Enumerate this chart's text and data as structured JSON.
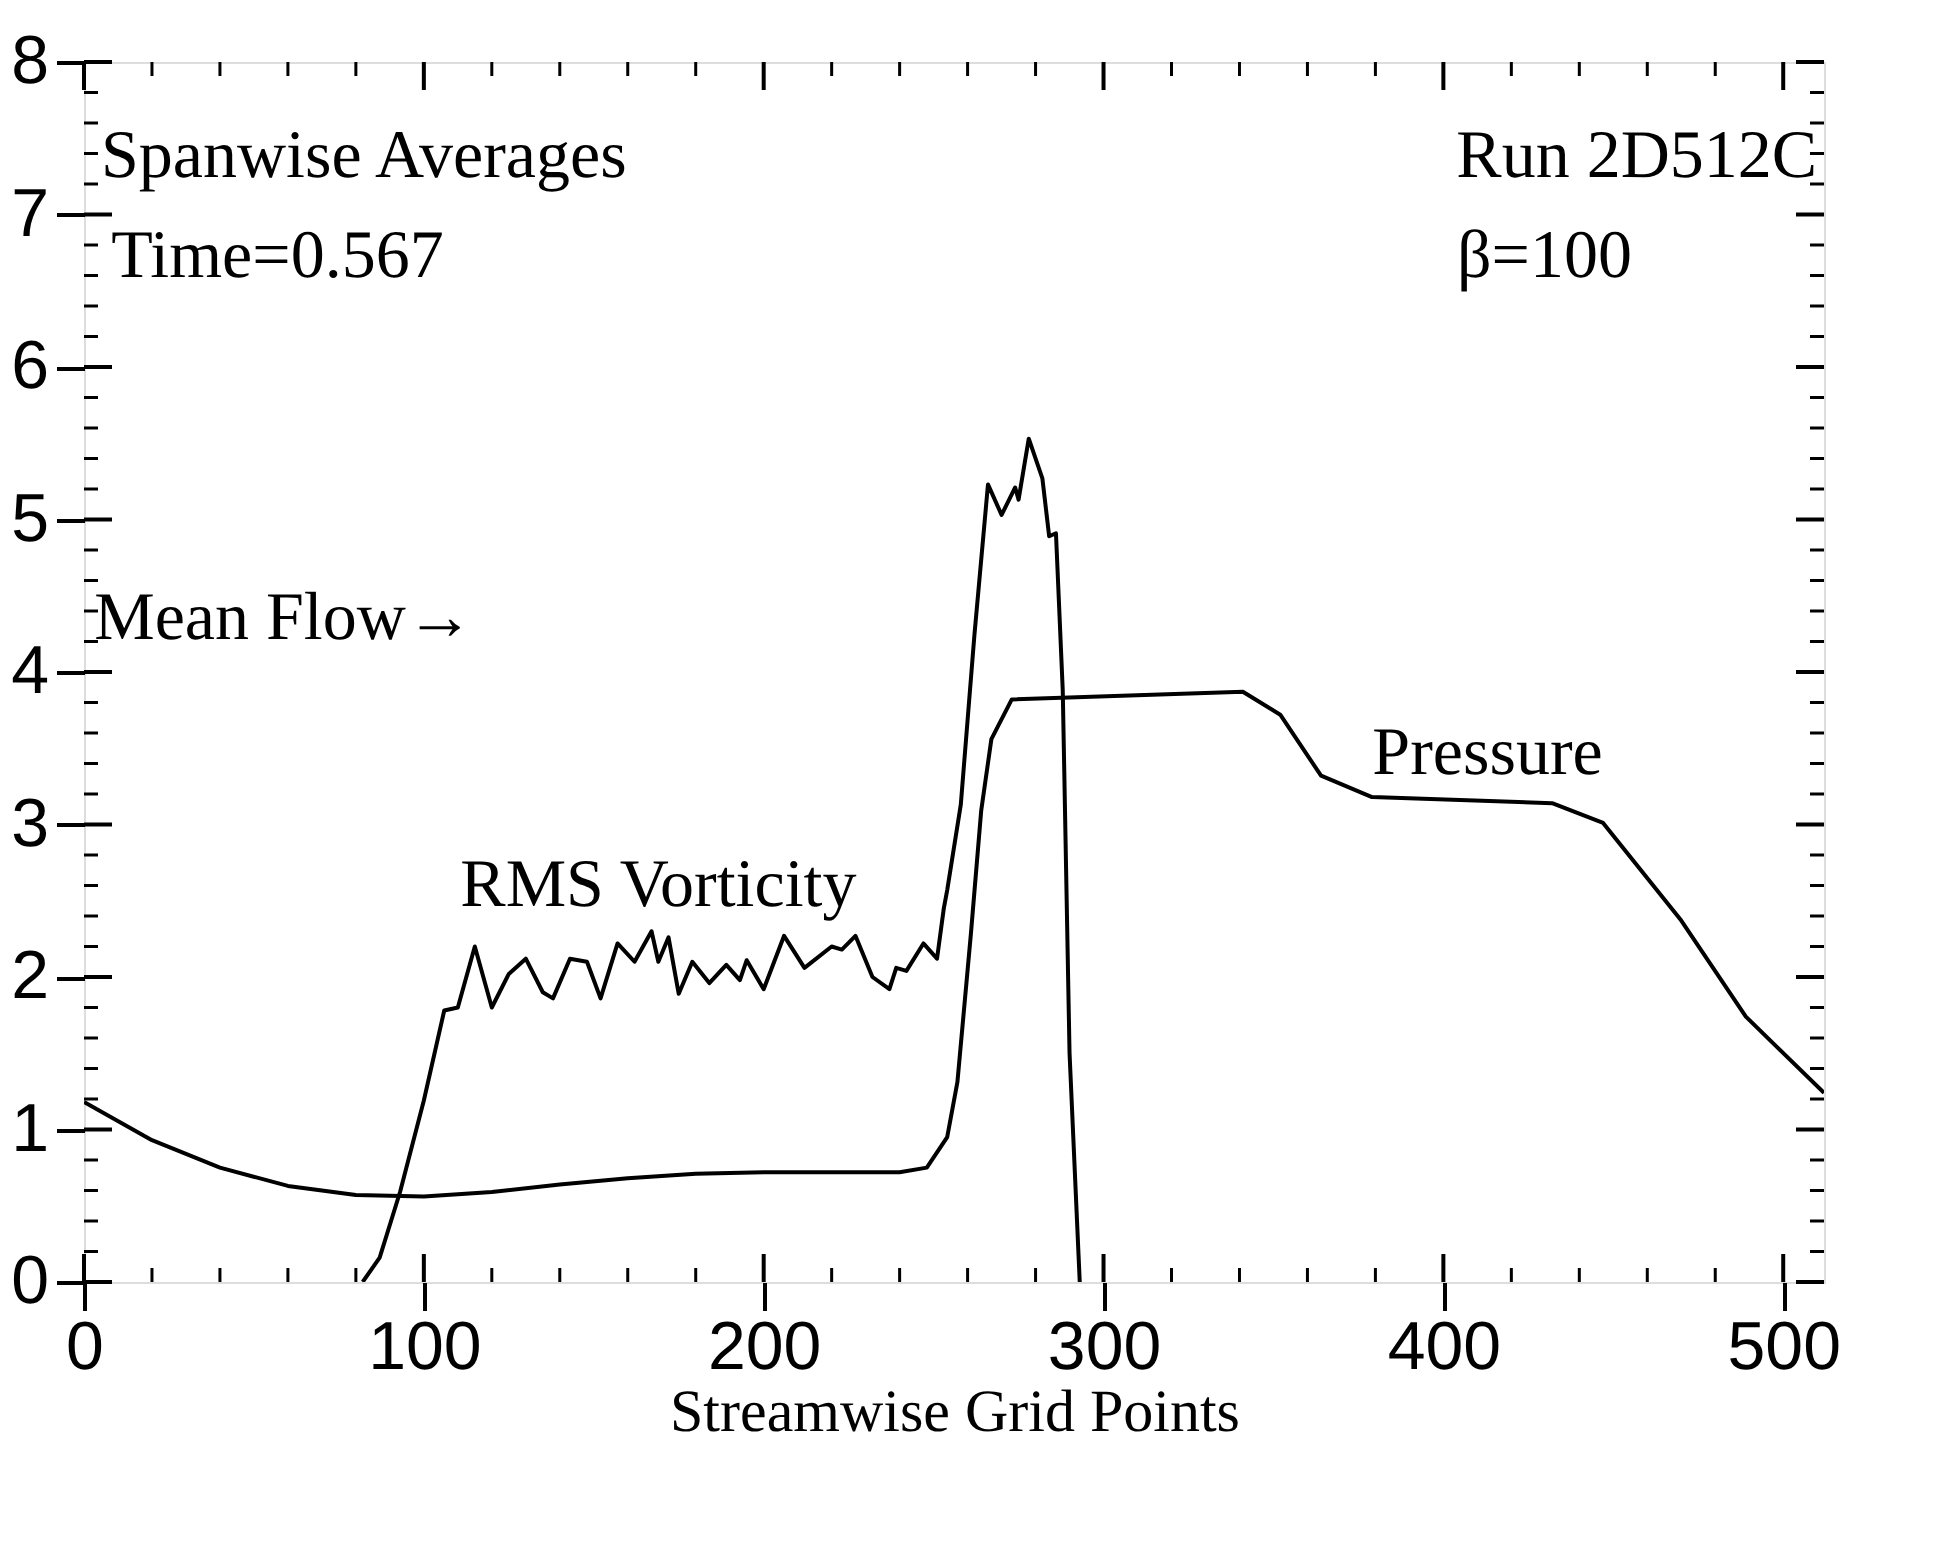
{
  "chart_data": {
    "type": "line",
    "xlabel": "Streamwise Grid Points",
    "annotations": [
      "Spanwise Averages",
      "Time=0.567",
      "Run 2D512C",
      "β=100",
      "Mean Flow→"
    ],
    "xlim": [
      0,
      512
    ],
    "ylim": [
      0,
      8
    ],
    "xticks": [
      0,
      {
        "value": 20,
        "label": null
      },
      {
        "value": 40,
        "label": null
      },
      {
        "value": 60,
        "label": null
      },
      {
        "value": 80,
        "label": null
      },
      100,
      {
        "value": 120,
        "label": null
      },
      {
        "value": 140,
        "label": null
      },
      {
        "value": 160,
        "label": null
      },
      {
        "value": 180,
        "label": null
      },
      200,
      {
        "value": 220,
        "label": null
      },
      {
        "value": 240,
        "label": null
      },
      {
        "value": 260,
        "label": null
      },
      {
        "value": 280,
        "label": null
      },
      300,
      {
        "value": 320,
        "label": null
      },
      {
        "value": 340,
        "label": null
      },
      {
        "value": 360,
        "label": null
      },
      {
        "value": 380,
        "label": null
      },
      400,
      {
        "value": 420,
        "label": null
      },
      {
        "value": 440,
        "label": null
      },
      {
        "value": 460,
        "label": null
      },
      {
        "value": 480,
        "label": null
      },
      500
    ],
    "yticks": [
      0,
      {
        "value": 0.2,
        "label": null
      },
      {
        "value": 0.4,
        "label": null
      },
      {
        "value": 0.6,
        "label": null
      },
      {
        "value": 0.8,
        "label": null
      },
      1,
      {
        "value": 1.2,
        "label": null
      },
      {
        "value": 1.4,
        "label": null
      },
      {
        "value": 1.6,
        "label": null
      },
      {
        "value": 1.8,
        "label": null
      },
      2,
      {
        "value": 2.2,
        "label": null
      },
      {
        "value": 2.4,
        "label": null
      },
      {
        "value": 2.6,
        "label": null
      },
      {
        "value": 2.8,
        "label": null
      },
      3,
      {
        "value": 3.2,
        "label": null
      },
      {
        "value": 3.4,
        "label": null
      },
      {
        "value": 3.6,
        "label": null
      },
      {
        "value": 3.8,
        "label": null
      },
      4,
      {
        "value": 4.2,
        "label": null
      },
      {
        "value": 4.4,
        "label": null
      },
      {
        "value": 4.6,
        "label": null
      },
      {
        "value": 4.8,
        "label": null
      },
      5,
      {
        "value": 5.2,
        "label": null
      },
      {
        "value": 5.4,
        "label": null
      },
      {
        "value": 5.6,
        "label": null
      },
      {
        "value": 5.8,
        "label": null
      },
      6,
      {
        "value": 6.2,
        "label": null
      },
      {
        "value": 6.4,
        "label": null
      },
      {
        "value": 6.6,
        "label": null
      },
      {
        "value": 6.8,
        "label": null
      },
      7,
      {
        "value": 7.2,
        "label": null
      },
      {
        "value": 7.4,
        "label": null
      },
      {
        "value": 7.6,
        "label": null
      },
      {
        "value": 7.8,
        "label": null
      },
      8
    ],
    "grid": false,
    "marker": "none",
    "line_style": "solid",
    "series": [
      {
        "name": "RMS Vorticity",
        "color": "#000000",
        "x": [
          82,
          87,
          93,
          100,
          106,
          110,
          115,
          120,
          125,
          130,
          135,
          138,
          143,
          148,
          152,
          157,
          162,
          167,
          169,
          172,
          175,
          179,
          184,
          189,
          193,
          195,
          200,
          206,
          212,
          220,
          223,
          227,
          232,
          237,
          239,
          242,
          247,
          251,
          253,
          254,
          258,
          262,
          266,
          270,
          274,
          275,
          278,
          282,
          284,
          286,
          288,
          290,
          293
        ],
        "values": [
          0,
          0.16,
          0.59,
          1.19,
          1.78,
          1.8,
          2.2,
          1.8,
          2.02,
          2.12,
          1.9,
          1.86,
          2.12,
          2.1,
          1.86,
          2.22,
          2.1,
          2.3,
          2.1,
          2.26,
          1.89,
          2.1,
          1.96,
          2.08,
          1.98,
          2.11,
          1.92,
          2.27,
          2.06,
          2.2,
          2.18,
          2.27,
          2.0,
          1.92,
          2.06,
          2.04,
          2.22,
          2.12,
          2.45,
          2.57,
          3.13,
          4.24,
          5.23,
          5.03,
          5.21,
          5.13,
          5.53,
          5.27,
          4.89,
          4.91,
          3.88,
          1.5,
          0
        ]
      },
      {
        "name": "Pressure",
        "color": "#000000",
        "x": [
          0,
          20,
          40,
          60,
          80,
          100,
          120,
          140,
          160,
          180,
          200,
          240,
          248,
          254,
          257,
          261,
          264,
          267,
          273,
          341,
          352,
          364,
          379,
          432,
          447,
          470,
          489,
          512
        ],
        "values": [
          1.18,
          0.93,
          0.75,
          0.63,
          0.57,
          0.56,
          0.59,
          0.64,
          0.68,
          0.71,
          0.72,
          0.72,
          0.75,
          0.95,
          1.31,
          2.29,
          3.09,
          3.56,
          3.82,
          3.87,
          3.72,
          3.32,
          3.18,
          3.14,
          3.01,
          2.37,
          1.74,
          1.24
        ]
      }
    ]
  }
}
